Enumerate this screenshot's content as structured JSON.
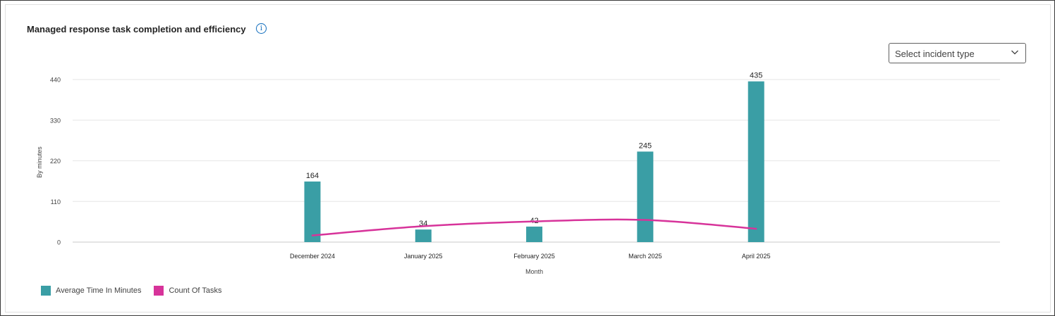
{
  "card": {
    "title": "Managed response task completion and efficiency",
    "info_icon": "info-icon"
  },
  "select": {
    "placeholder": "Select incident type",
    "icon": "chevron-down-icon"
  },
  "colors": {
    "bar": "#3a9ea5",
    "line": "#d7339a",
    "grid": "#e6e6e6",
    "axis": "#c8c8c8"
  },
  "chart_data": {
    "type": "bar",
    "categories": [
      "December 2024",
      "January 2025",
      "February 2025",
      "March 2025",
      "April 2025"
    ],
    "series": [
      {
        "name": "Average Time In Minutes",
        "kind": "bar",
        "values": [
          164,
          34,
          42,
          245,
          435
        ]
      },
      {
        "name": "Count Of Tasks",
        "kind": "line",
        "values": [
          18,
          43,
          56,
          60,
          36
        ]
      }
    ],
    "data_labels": [
      "164",
      "34",
      "42",
      "245",
      "435"
    ],
    "xlabel": "Month",
    "ylabel": "By minutes",
    "yticks": [
      0,
      110,
      220,
      330,
      440
    ],
    "ylim": [
      0,
      440
    ],
    "grid": true,
    "legend": "bottom-left"
  }
}
